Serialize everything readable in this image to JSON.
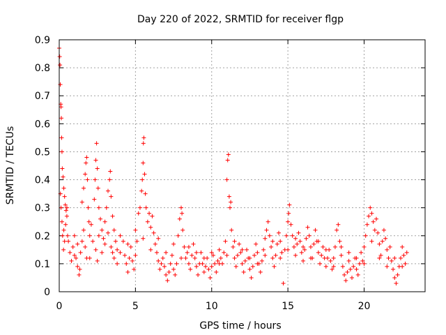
{
  "chart_data": {
    "type": "scatter",
    "title": "Day 220 of 2022, SRMTID for receiver flgp",
    "xlabel": "GPS time / hours",
    "ylabel": "SRMTID / TECUs",
    "xlim": [
      0,
      24
    ],
    "ylim": [
      0,
      0.9
    ],
    "xticks": [
      0,
      5,
      10,
      15,
      20
    ],
    "yticks": [
      0,
      0.1,
      0.2,
      0.3,
      0.4,
      0.5,
      0.6,
      0.7,
      0.8,
      0.9
    ],
    "x_tick_labels": [
      "0",
      "5",
      "10",
      "15",
      "20"
    ],
    "y_tick_labels": [
      "0",
      "0.1",
      "0.2",
      "0.3",
      "0.4",
      "0.5",
      "0.6",
      "0.7",
      "0.8",
      "0.9"
    ],
    "grid": true,
    "marker": "+",
    "marker_color": "#ff0000",
    "series": [
      {
        "name": "SRMTID",
        "points": [
          [
            0.0,
            0.87
          ],
          [
            0.03,
            0.84
          ],
          [
            0.05,
            0.81
          ],
          [
            0.07,
            0.74
          ],
          [
            0.1,
            0.67
          ],
          [
            0.12,
            0.66
          ],
          [
            0.14,
            0.62
          ],
          [
            0.16,
            0.55
          ],
          [
            0.18,
            0.5
          ],
          [
            0.2,
            0.44
          ],
          [
            0.25,
            0.41
          ],
          [
            0.3,
            0.37
          ],
          [
            0.35,
            0.34
          ],
          [
            0.4,
            0.31
          ],
          [
            0.45,
            0.29
          ],
          [
            0.5,
            0.27
          ],
          [
            0.08,
            0.35
          ],
          [
            0.12,
            0.3
          ],
          [
            0.18,
            0.25
          ],
          [
            0.22,
            0.2
          ],
          [
            0.28,
            0.15
          ],
          [
            0.3,
            0.22
          ],
          [
            0.35,
            0.18
          ],
          [
            0.42,
            0.24
          ],
          [
            0.5,
            0.3
          ],
          [
            0.55,
            0.2
          ],
          [
            0.6,
            0.18
          ],
          [
            0.7,
            0.14
          ],
          [
            0.8,
            0.11
          ],
          [
            0.9,
            0.16
          ],
          [
            1.0,
            0.2
          ],
          [
            1.1,
            0.12
          ],
          [
            1.2,
            0.09
          ],
          [
            1.3,
            0.06
          ],
          [
            1.35,
            0.08
          ],
          [
            1.4,
            0.14
          ],
          [
            1.5,
            0.18
          ],
          [
            1.6,
            0.22
          ],
          [
            1.7,
            0.16
          ],
          [
            1.8,
            0.12
          ],
          [
            1.5,
            0.32
          ],
          [
            1.6,
            0.37
          ],
          [
            1.7,
            0.42
          ],
          [
            1.75,
            0.46
          ],
          [
            1.8,
            0.48
          ],
          [
            1.85,
            0.4
          ],
          [
            1.9,
            0.3
          ],
          [
            1.95,
            0.25
          ],
          [
            2.0,
            0.2
          ],
          [
            2.1,
            0.24
          ],
          [
            2.3,
            0.33
          ],
          [
            2.35,
            0.4
          ],
          [
            2.4,
            0.47
          ],
          [
            2.45,
            0.53
          ],
          [
            2.5,
            0.44
          ],
          [
            2.55,
            0.37
          ],
          [
            2.6,
            0.3
          ],
          [
            2.7,
            0.26
          ],
          [
            2.8,
            0.22
          ],
          [
            2.9,
            0.19
          ],
          [
            3.0,
            0.25
          ],
          [
            3.1,
            0.3
          ],
          [
            3.2,
            0.36
          ],
          [
            3.3,
            0.4
          ],
          [
            3.35,
            0.43
          ],
          [
            3.4,
            0.34
          ],
          [
            3.5,
            0.27
          ],
          [
            3.6,
            0.22
          ],
          [
            3.7,
            0.18
          ],
          [
            3.8,
            0.15
          ],
          [
            2.2,
            0.18
          ],
          [
            2.4,
            0.15
          ],
          [
            2.6,
            0.2
          ],
          [
            2.8,
            0.14
          ],
          [
            3.0,
            0.17
          ],
          [
            3.2,
            0.21
          ],
          [
            3.4,
            0.16
          ],
          [
            3.6,
            0.12
          ],
          [
            3.8,
            0.1
          ],
          [
            4.0,
            0.14
          ],
          [
            4.2,
            0.18
          ],
          [
            4.3,
            0.13
          ],
          [
            4.4,
            0.1
          ],
          [
            4.5,
            0.07
          ],
          [
            4.6,
            0.12
          ],
          [
            4.7,
            0.16
          ],
          [
            4.8,
            0.11
          ],
          [
            4.9,
            0.08
          ],
          [
            5.0,
            0.13
          ],
          [
            5.1,
            0.18
          ],
          [
            5.2,
            0.28
          ],
          [
            5.3,
            0.3
          ],
          [
            5.4,
            0.36
          ],
          [
            5.45,
            0.4
          ],
          [
            5.5,
            0.46
          ],
          [
            5.52,
            0.53
          ],
          [
            5.55,
            0.55
          ],
          [
            5.6,
            0.42
          ],
          [
            5.65,
            0.35
          ],
          [
            5.7,
            0.3
          ],
          [
            5.8,
            0.25
          ],
          [
            5.9,
            0.28
          ],
          [
            6.0,
            0.23
          ],
          [
            6.1,
            0.27
          ],
          [
            6.2,
            0.21
          ],
          [
            6.3,
            0.17
          ],
          [
            6.4,
            0.14
          ],
          [
            6.5,
            0.11
          ],
          [
            6.6,
            0.08
          ],
          [
            6.7,
            0.1
          ],
          [
            6.8,
            0.12
          ],
          [
            6.9,
            0.09
          ],
          [
            7.0,
            0.06
          ],
          [
            7.1,
            0.04
          ],
          [
            7.2,
            0.07
          ],
          [
            7.3,
            0.1
          ],
          [
            7.4,
            0.13
          ],
          [
            7.5,
            0.08
          ],
          [
            7.6,
            0.06
          ],
          [
            7.7,
            0.1
          ],
          [
            7.8,
            0.2
          ],
          [
            7.9,
            0.26
          ],
          [
            8.0,
            0.3
          ],
          [
            8.05,
            0.28
          ],
          [
            8.1,
            0.22
          ],
          [
            8.2,
            0.16
          ],
          [
            8.3,
            0.12
          ],
          [
            8.4,
            0.14
          ],
          [
            8.5,
            0.1
          ],
          [
            8.6,
            0.08
          ],
          [
            8.7,
            0.13
          ],
          [
            8.8,
            0.17
          ],
          [
            8.9,
            0.12
          ],
          [
            9.0,
            0.09
          ],
          [
            9.1,
            0.06
          ],
          [
            9.2,
            0.1
          ],
          [
            9.3,
            0.14
          ],
          [
            9.4,
            0.1
          ],
          [
            9.5,
            0.07
          ],
          [
            9.6,
            0.09
          ],
          [
            9.7,
            0.12
          ],
          [
            9.8,
            0.08
          ],
          [
            9.9,
            0.05
          ],
          [
            10.0,
            0.09
          ],
          [
            10.1,
            0.13
          ],
          [
            10.2,
            0.1
          ],
          [
            10.3,
            0.07
          ],
          [
            10.4,
            0.11
          ],
          [
            10.5,
            0.15
          ],
          [
            10.6,
            0.12
          ],
          [
            10.7,
            0.1
          ],
          [
            10.8,
            0.14
          ],
          [
            10.9,
            0.18
          ],
          [
            11.0,
            0.4
          ],
          [
            11.05,
            0.47
          ],
          [
            11.1,
            0.49
          ],
          [
            11.15,
            0.34
          ],
          [
            11.2,
            0.3
          ],
          [
            11.25,
            0.32
          ],
          [
            11.3,
            0.22
          ],
          [
            11.4,
            0.16
          ],
          [
            11.5,
            0.12
          ],
          [
            11.6,
            0.09
          ],
          [
            11.7,
            0.13
          ],
          [
            11.8,
            0.17
          ],
          [
            11.9,
            0.14
          ],
          [
            12.0,
            0.1
          ],
          [
            12.1,
            0.07
          ],
          [
            12.2,
            0.11
          ],
          [
            12.3,
            0.15
          ],
          [
            12.4,
            0.12
          ],
          [
            12.5,
            0.08
          ],
          [
            12.6,
            0.05
          ],
          [
            12.7,
            0.09
          ],
          [
            12.8,
            0.13
          ],
          [
            12.9,
            0.17
          ],
          [
            13.0,
            0.14
          ],
          [
            13.1,
            0.1
          ],
          [
            13.2,
            0.07
          ],
          [
            13.3,
            0.11
          ],
          [
            13.4,
            0.15
          ],
          [
            13.5,
            0.19
          ],
          [
            13.6,
            0.22
          ],
          [
            13.7,
            0.25
          ],
          [
            13.8,
            0.2
          ],
          [
            13.9,
            0.16
          ],
          [
            14.0,
            0.12
          ],
          [
            14.1,
            0.09
          ],
          [
            14.2,
            0.13
          ],
          [
            14.3,
            0.17
          ],
          [
            14.4,
            0.21
          ],
          [
            14.5,
            0.18
          ],
          [
            14.6,
            0.14
          ],
          [
            14.7,
            0.03
          ],
          [
            14.8,
            0.15
          ],
          [
            14.9,
            0.2
          ],
          [
            15.0,
            0.25
          ],
          [
            15.05,
            0.28
          ],
          [
            15.1,
            0.31
          ],
          [
            15.2,
            0.24
          ],
          [
            15.3,
            0.2
          ],
          [
            15.4,
            0.16
          ],
          [
            15.5,
            0.13
          ],
          [
            15.6,
            0.17
          ],
          [
            15.7,
            0.21
          ],
          [
            15.8,
            0.18
          ],
          [
            15.9,
            0.14
          ],
          [
            16.0,
            0.11
          ],
          [
            16.1,
            0.15
          ],
          [
            16.2,
            0.19
          ],
          [
            16.3,
            0.23
          ],
          [
            16.4,
            0.2
          ],
          [
            16.5,
            0.16
          ],
          [
            16.6,
            0.12
          ],
          [
            16.7,
            0.17
          ],
          [
            16.8,
            0.22
          ],
          [
            16.9,
            0.18
          ],
          [
            17.0,
            0.14
          ],
          [
            17.1,
            0.1
          ],
          [
            17.2,
            0.13
          ],
          [
            17.3,
            0.16
          ],
          [
            17.4,
            0.12
          ],
          [
            17.5,
            0.09
          ],
          [
            17.6,
            0.12
          ],
          [
            17.7,
            0.15
          ],
          [
            17.8,
            0.11
          ],
          [
            17.9,
            0.08
          ],
          [
            18.0,
            0.12
          ],
          [
            18.1,
            0.16
          ],
          [
            18.2,
            0.22
          ],
          [
            18.3,
            0.24
          ],
          [
            18.4,
            0.18
          ],
          [
            18.5,
            0.13
          ],
          [
            18.6,
            0.09
          ],
          [
            18.7,
            0.06
          ],
          [
            18.8,
            0.04
          ],
          [
            18.9,
            0.07
          ],
          [
            19.0,
            0.11
          ],
          [
            19.1,
            0.08
          ],
          [
            19.2,
            0.05
          ],
          [
            19.3,
            0.09
          ],
          [
            19.4,
            0.12
          ],
          [
            19.5,
            0.08
          ],
          [
            19.6,
            0.06
          ],
          [
            19.7,
            0.1
          ],
          [
            19.8,
            0.14
          ],
          [
            19.9,
            0.11
          ],
          [
            20.0,
            0.16
          ],
          [
            20.1,
            0.2
          ],
          [
            20.2,
            0.24
          ],
          [
            20.3,
            0.27
          ],
          [
            20.4,
            0.3
          ],
          [
            20.5,
            0.28
          ],
          [
            20.6,
            0.25
          ],
          [
            20.7,
            0.22
          ],
          [
            20.8,
            0.26
          ],
          [
            20.9,
            0.21
          ],
          [
            21.0,
            0.17
          ],
          [
            21.1,
            0.13
          ],
          [
            21.2,
            0.18
          ],
          [
            21.3,
            0.22
          ],
          [
            21.4,
            0.19
          ],
          [
            21.5,
            0.15
          ],
          [
            21.6,
            0.12
          ],
          [
            21.7,
            0.16
          ],
          [
            21.8,
            0.11
          ],
          [
            21.9,
            0.08
          ],
          [
            22.0,
            0.05
          ],
          [
            22.1,
            0.03
          ],
          [
            22.2,
            0.06
          ],
          [
            22.3,
            0.09
          ],
          [
            22.4,
            0.12
          ],
          [
            22.5,
            0.16
          ],
          [
            22.6,
            0.13
          ],
          [
            22.7,
            0.1
          ],
          [
            22.8,
            0.14
          ],
          [
            1.0,
            0.13
          ],
          [
            1.2,
            0.17
          ],
          [
            2.0,
            0.12
          ],
          [
            2.5,
            0.11
          ],
          [
            3.5,
            0.14
          ],
          [
            4.0,
            0.2
          ],
          [
            4.5,
            0.17
          ],
          [
            5.0,
            0.22
          ],
          [
            5.5,
            0.19
          ],
          [
            6.0,
            0.15
          ],
          [
            6.5,
            0.19
          ],
          [
            7.0,
            0.14
          ],
          [
            7.5,
            0.17
          ],
          [
            8.0,
            0.12
          ],
          [
            8.5,
            0.16
          ],
          [
            9.0,
            0.14
          ],
          [
            9.5,
            0.12
          ],
          [
            10.0,
            0.14
          ],
          [
            10.5,
            0.1
          ],
          [
            11.0,
            0.13
          ],
          [
            11.5,
            0.18
          ],
          [
            12.0,
            0.15
          ],
          [
            12.5,
            0.12
          ],
          [
            13.0,
            0.1
          ],
          [
            13.5,
            0.13
          ],
          [
            14.0,
            0.18
          ],
          [
            14.5,
            0.12
          ],
          [
            15.0,
            0.15
          ],
          [
            15.5,
            0.19
          ],
          [
            16.0,
            0.16
          ],
          [
            16.5,
            0.12
          ],
          [
            17.0,
            0.18
          ],
          [
            17.5,
            0.15
          ],
          [
            18.0,
            0.09
          ],
          [
            18.5,
            0.16
          ],
          [
            19.0,
            0.14
          ],
          [
            19.5,
            0.12
          ],
          [
            20.0,
            0.1
          ],
          [
            20.5,
            0.18
          ],
          [
            21.0,
            0.12
          ],
          [
            21.5,
            0.09
          ],
          [
            22.0,
            0.12
          ],
          [
            22.5,
            0.09
          ]
        ]
      }
    ]
  }
}
